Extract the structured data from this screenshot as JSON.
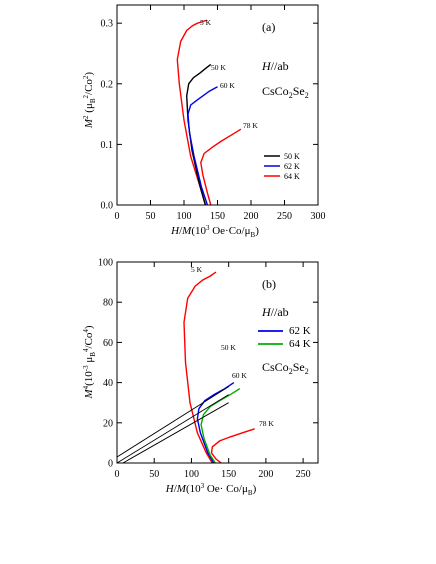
{
  "colors": {
    "red": "#ff0000",
    "blue": "#0000ee",
    "green": "#00b000",
    "black": "#000000"
  },
  "chart_data": [
    {
      "type": "line",
      "panel_label": "(a)",
      "xlabel_html": "H/M(10^3 Oe·Co/μB)",
      "ylabel_html": "M^2 (μB^2/Co^2)",
      "xlim": [
        0,
        300
      ],
      "ylim": [
        0,
        0.33
      ],
      "xticks": [
        0,
        50,
        100,
        150,
        200,
        250,
        300
      ],
      "yticks": [
        0.0,
        0.1,
        0.2,
        0.3
      ],
      "xtick_labels": [
        "0",
        "50",
        "100",
        "150",
        "200",
        "250",
        "300"
      ],
      "ytick_labels": [
        "0.0",
        "0.1",
        "0.2",
        "0.3"
      ],
      "annotations": {
        "field_dir": "H//ab",
        "compound": "CsCo2Se2",
        "top_temp": "5 K",
        "mid_temp": "50 K",
        "t60": "60 K",
        "bottom_temp": "78 K"
      },
      "legend": [
        "50 K",
        "62 K",
        "64 K"
      ],
      "series": [
        {
          "name": "5 K",
          "color": "red",
          "x": [
            132,
            124,
            110,
            100,
            93,
            90,
            95,
            104,
            113,
            120,
            126,
            134
          ],
          "y": [
            0,
            0.03,
            0.08,
            0.14,
            0.2,
            0.24,
            0.27,
            0.288,
            0.296,
            0.3,
            0.302,
            0.305
          ]
        },
        {
          "name": "50 K",
          "color": "black",
          "x": [
            132,
            123,
            112,
            106,
            104,
            107,
            114,
            124,
            132,
            140
          ],
          "y": [
            0,
            0.035,
            0.09,
            0.14,
            0.18,
            0.2,
            0.21,
            0.218,
            0.225,
            0.232
          ]
        },
        {
          "name": "62 K",
          "color": "blue",
          "x": [
            135,
            126,
            115,
            108,
            106,
            110,
            118,
            128,
            138,
            150
          ],
          "y": [
            0,
            0.03,
            0.08,
            0.12,
            0.15,
            0.165,
            0.172,
            0.18,
            0.188,
            0.195
          ]
        },
        {
          "name": "78 K",
          "color": "red",
          "x": [
            140,
            135,
            128,
            125,
            130,
            142,
            155,
            170,
            185
          ],
          "y": [
            0,
            0.02,
            0.05,
            0.07,
            0.085,
            0.095,
            0.105,
            0.115,
            0.125
          ]
        }
      ]
    },
    {
      "type": "line",
      "panel_label": "(b)",
      "xlabel_html": "H/M(10^3 Oe· Co/μB)",
      "ylabel_html": "M^4(10^-3 μB^4/Co^4)",
      "xlim": [
        0,
        270
      ],
      "ylim": [
        0,
        100
      ],
      "xticks": [
        0,
        50,
        100,
        150,
        200,
        250
      ],
      "yticks": [
        0,
        20,
        40,
        60,
        80,
        100
      ],
      "xtick_labels": [
        "0",
        "50",
        "100",
        "150",
        "200",
        "250"
      ],
      "ytick_labels": [
        "0",
        "20",
        "40",
        "60",
        "80",
        "100"
      ],
      "annotations": {
        "field_dir": "H//ab",
        "compound": "CsCo2Se2",
        "top_temp": "5 K",
        "mid_temp": "50 K",
        "t60": "60 K",
        "bottom_temp": "78 K"
      },
      "legend": [
        "62 K",
        "64 K"
      ],
      "series": [
        {
          "name": "5 K",
          "color": "red",
          "x": [
            128,
            120,
            108,
            98,
            92,
            90,
            95,
            105,
            115,
            125,
            133
          ],
          "y": [
            0,
            5,
            15,
            30,
            50,
            70,
            82,
            88,
            91,
            93,
            95
          ]
        },
        {
          "name": "62 K",
          "color": "blue",
          "x": [
            130,
            122,
            112,
            108,
            110,
            118,
            130,
            145,
            157
          ],
          "y": [
            0,
            5,
            15,
            22,
            27,
            31,
            34,
            37,
            40
          ]
        },
        {
          "name": "64 K",
          "color": "green",
          "x": [
            132,
            125,
            117,
            113,
            116,
            125,
            138,
            152,
            165
          ],
          "y": [
            0,
            4,
            12,
            19,
            24,
            28,
            31,
            34,
            37
          ]
        },
        {
          "name": "78 K",
          "color": "red",
          "x": [
            140,
            133,
            127,
            128,
            138,
            152,
            168,
            185
          ],
          "y": [
            0,
            2,
            5,
            8,
            11,
            13,
            15,
            17
          ]
        }
      ],
      "fit_lines": [
        {
          "x": [
            0,
            150
          ],
          "y": [
            3,
            38
          ]
        },
        {
          "x": [
            0,
            150
          ],
          "y": [
            0,
            34
          ]
        },
        {
          "x": [
            8,
            150
          ],
          "y": [
            0,
            30
          ]
        }
      ]
    }
  ]
}
